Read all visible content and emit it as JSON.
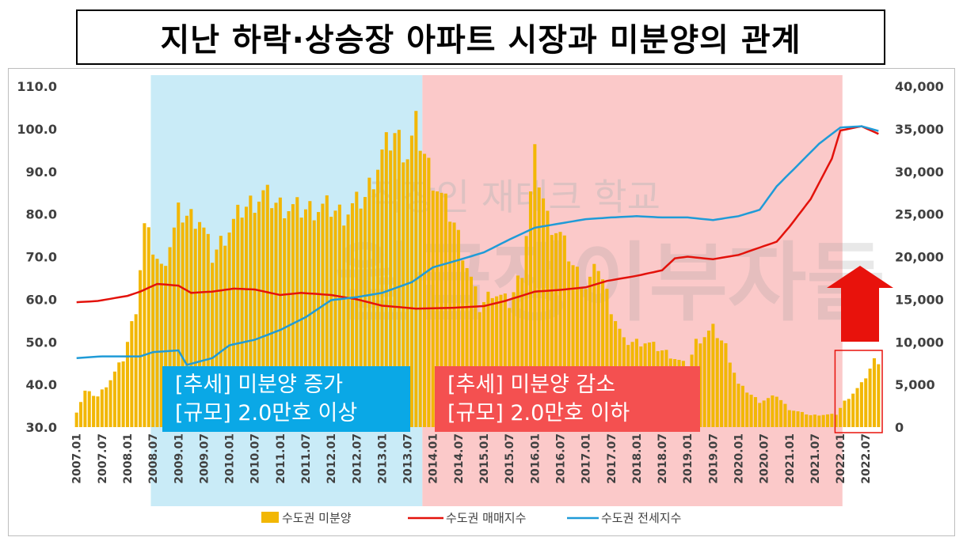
{
  "title": "지난 하락·상승장 아파트 시장과 미분양의 관계",
  "watermark": [
    "직장인 재테크 학교",
    "월급쟁이부자들"
  ],
  "annotations": {
    "left": {
      "line1": "[추세] 미분양 증가",
      "line2": "[규모] 2.0만호 이상",
      "color": "#0aa8e6"
    },
    "right": {
      "line1": "[추세] 미분양 감소",
      "line2": "[규모] 2.0만호 이하",
      "color": "#f45050"
    }
  },
  "colors": {
    "bars": "#f2b705",
    "sale_line": "#e3120b",
    "jeonse_line": "#1f9bd7",
    "left_shade": "#c9ebf7",
    "right_shade": "#fbc9c9",
    "arrow": "#e8120c"
  },
  "chart_data": {
    "type": "bar+line",
    "title": "지난 하락·상승장 아파트 시장과 미분양의 관계",
    "x_range": [
      "2007.01",
      "2022.10"
    ],
    "x_tick_labels": [
      "2007.01",
      "2007.07",
      "2008.01",
      "2008.07",
      "2009.01",
      "2009.07",
      "2010.01",
      "2010.07",
      "2011.01",
      "2011.07",
      "2012.01",
      "2012.07",
      "2013.01",
      "2013.07",
      "2014.01",
      "2014.07",
      "2015.01",
      "2015.07",
      "2016.01",
      "2016.07",
      "2017.01",
      "2017.07",
      "2018.01",
      "2018.07",
      "2019.01",
      "2019.07",
      "2020.01",
      "2020.07",
      "2021.01",
      "2021.07",
      "2022.01",
      "2022.07"
    ],
    "y_left": {
      "ticks": [
        "30.0",
        "40.0",
        "50.0",
        "60.0",
        "70.0",
        "80.0",
        "90.0",
        "100.0",
        "110.0"
      ],
      "range": [
        30,
        110
      ]
    },
    "y_right": {
      "ticks": [
        "0",
        "5,000",
        "10,000",
        "15,000",
        "20,000",
        "25,000",
        "30,000",
        "35,000",
        "40,000"
      ],
      "range": [
        0,
        40000
      ]
    },
    "legend": [
      {
        "name": "수도권 미분양",
        "marker": "bar"
      },
      {
        "name": "수도권 매매지수",
        "marker": "line"
      },
      {
        "name": "수도권 전세지수",
        "marker": "line"
      }
    ],
    "legend_position": "bottom",
    "grid": false,
    "shaded_periods": [
      {
        "from": "2008.07",
        "to": "2013.10",
        "color": "light blue"
      },
      {
        "from": "2013.11",
        "to": "2022.01",
        "color": "light red"
      }
    ],
    "highlight_box": {
      "from": "2022.01",
      "to": "2022.10"
    },
    "series": [
      {
        "name": "수도권 미분양",
        "type": "bar",
        "axis": "right",
        "anchors": [
          [
            "2007.01",
            1800
          ],
          [
            "2007.03",
            4200
          ],
          [
            "2007.06",
            3600
          ],
          [
            "2007.09",
            5600
          ],
          [
            "2007.12",
            8000
          ],
          [
            "2008.03",
            14000
          ],
          [
            "2008.05",
            23500
          ],
          [
            "2008.09",
            18500
          ],
          [
            "2008.12",
            23000
          ],
          [
            "2009.01",
            25000
          ],
          [
            "2009.06",
            24500
          ],
          [
            "2009.09",
            20000
          ],
          [
            "2009.12",
            22500
          ],
          [
            "2010.04",
            25500
          ],
          [
            "2010.09",
            27300
          ],
          [
            "2011.01",
            26000
          ],
          [
            "2011.06",
            25500
          ],
          [
            "2011.12",
            25800
          ],
          [
            "2012.04",
            25000
          ],
          [
            "2012.09",
            27000
          ],
          [
            "2013.01",
            32000
          ],
          [
            "2013.04",
            34500
          ],
          [
            "2013.07",
            32000
          ],
          [
            "2013.09",
            35200
          ],
          [
            "2013.12",
            30500
          ],
          [
            "2014.03",
            27000
          ],
          [
            "2014.06",
            24000
          ],
          [
            "2014.09",
            19000
          ],
          [
            "2014.12",
            14000
          ],
          [
            "2015.03",
            16000
          ],
          [
            "2015.07",
            14500
          ],
          [
            "2015.10",
            18500
          ],
          [
            "2016.01",
            31500
          ],
          [
            "2016.04",
            24500
          ],
          [
            "2016.07",
            22500
          ],
          [
            "2016.10",
            19000
          ],
          [
            "2017.01",
            16500
          ],
          [
            "2017.04",
            19000
          ],
          [
            "2017.07",
            14000
          ],
          [
            "2017.10",
            10000
          ],
          [
            "2018.03",
            10000
          ],
          [
            "2018.09",
            8500
          ],
          [
            "2019.01",
            7000
          ],
          [
            "2019.03",
            10000
          ],
          [
            "2019.07",
            11500
          ],
          [
            "2019.10",
            9500
          ],
          [
            "2020.01",
            5000
          ],
          [
            "2020.06",
            3000
          ],
          [
            "2020.10",
            3700
          ],
          [
            "2021.01",
            2100
          ],
          [
            "2021.06",
            1400
          ],
          [
            "2021.12",
            1500
          ],
          [
            "2022.02",
            3000
          ],
          [
            "2022.06",
            5000
          ],
          [
            "2022.09",
            7800
          ]
        ]
      },
      {
        "name": "수도권 매매지수",
        "type": "line",
        "axis": "left",
        "anchors": [
          [
            "2007.01",
            59.3
          ],
          [
            "2007.06",
            59.6
          ],
          [
            "2008.01",
            60.8
          ],
          [
            "2008.04",
            61.8
          ],
          [
            "2008.08",
            63.6
          ],
          [
            "2009.01",
            63.2
          ],
          [
            "2009.04",
            61.5
          ],
          [
            "2009.09",
            61.8
          ],
          [
            "2010.02",
            62.5
          ],
          [
            "2010.07",
            62.3
          ],
          [
            "2011.01",
            61.0
          ],
          [
            "2011.06",
            61.5
          ],
          [
            "2012.01",
            61.0
          ],
          [
            "2012.07",
            60.0
          ],
          [
            "2013.01",
            58.5
          ],
          [
            "2013.09",
            57.8
          ],
          [
            "2014.06",
            58.0
          ],
          [
            "2015.01",
            58.4
          ],
          [
            "2015.06",
            59.6
          ],
          [
            "2016.01",
            61.8
          ],
          [
            "2016.07",
            62.2
          ],
          [
            "2017.01",
            62.8
          ],
          [
            "2017.06",
            64.3
          ],
          [
            "2018.01",
            65.5
          ],
          [
            "2018.07",
            66.8
          ],
          [
            "2018.10",
            69.6
          ],
          [
            "2019.01",
            70.0
          ],
          [
            "2019.07",
            69.4
          ],
          [
            "2020.01",
            70.4
          ],
          [
            "2020.05",
            71.8
          ],
          [
            "2020.10",
            73.5
          ],
          [
            "2021.01",
            77.0
          ],
          [
            "2021.06",
            83.5
          ],
          [
            "2021.11",
            93.0
          ],
          [
            "2022.01",
            99.6
          ],
          [
            "2022.06",
            100.6
          ],
          [
            "2022.10",
            98.8
          ]
        ]
      },
      {
        "name": "수도권 전세지수",
        "type": "line",
        "axis": "left",
        "anchors": [
          [
            "2007.01",
            46.2
          ],
          [
            "2007.07",
            46.6
          ],
          [
            "2008.04",
            46.6
          ],
          [
            "2008.07",
            47.6
          ],
          [
            "2009.01",
            48.0
          ],
          [
            "2009.03",
            44.6
          ],
          [
            "2009.09",
            46.2
          ],
          [
            "2010.01",
            49.2
          ],
          [
            "2010.07",
            50.5
          ],
          [
            "2011.01",
            52.8
          ],
          [
            "2011.07",
            55.8
          ],
          [
            "2012.01",
            59.8
          ],
          [
            "2012.07",
            60.5
          ],
          [
            "2013.01",
            61.5
          ],
          [
            "2013.08",
            64.0
          ],
          [
            "2014.01",
            67.5
          ],
          [
            "2014.07",
            69.2
          ],
          [
            "2015.01",
            71.0
          ],
          [
            "2015.07",
            74.0
          ],
          [
            "2016.01",
            76.8
          ],
          [
            "2016.07",
            77.8
          ],
          [
            "2017.01",
            78.8
          ],
          [
            "2017.07",
            79.2
          ],
          [
            "2018.01",
            79.5
          ],
          [
            "2018.07",
            79.2
          ],
          [
            "2019.01",
            79.2
          ],
          [
            "2019.07",
            78.6
          ],
          [
            "2020.01",
            79.5
          ],
          [
            "2020.06",
            81.0
          ],
          [
            "2020.10",
            86.5
          ],
          [
            "2021.03",
            91.5
          ],
          [
            "2021.08",
            96.5
          ],
          [
            "2022.01",
            100.3
          ],
          [
            "2022.06",
            100.6
          ],
          [
            "2022.10",
            99.5
          ]
        ]
      }
    ]
  }
}
